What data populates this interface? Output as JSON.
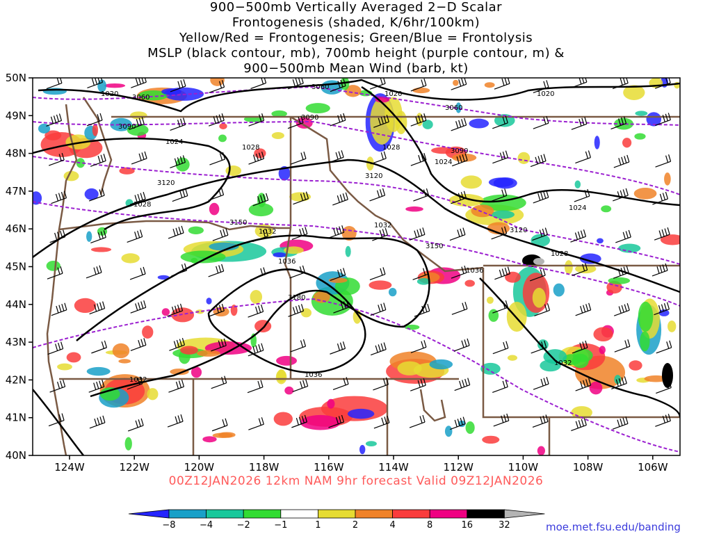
{
  "title_lines": [
    "900−500mb Vertically Averaged 2−D Scalar",
    "Frontogenesis (shaded, K/6hr/100km)",
    "Yellow/Red = Frontogenesis;  Green/Blue = Frontolysis",
    "MSLP (black contour, mb), 700mb height (purple contour, m) &",
    "900−500mb Mean Wind (barb, kt)"
  ],
  "subtitle": "00Z12JAN2026 12km NAM 9hr forecast Valid 09Z12JAN2026",
  "credit": "moe.met.fsu.edu/banding",
  "lat_labels": [
    "50N",
    "49N",
    "48N",
    "47N",
    "46N",
    "45N",
    "44N",
    "43N",
    "42N",
    "41N",
    "40N"
  ],
  "lon_labels": [
    "124W",
    "122W",
    "120W",
    "118W",
    "116W",
    "114W",
    "112W",
    "110W",
    "108W",
    "106W"
  ],
  "colorbar": {
    "labels": [
      "−8",
      "−4",
      "−2",
      "−1",
      "1",
      "2",
      "4",
      "8",
      "16",
      "32"
    ],
    "colors": [
      "#2424ff",
      "#19a0c8",
      "#19c89b",
      "#32dc32",
      "#ffffff",
      "#e6dc32",
      "#f08228",
      "#fa3c3c",
      "#f00082",
      "#000000",
      "#b4b4b4"
    ]
  },
  "mslp_labels": [
    "1020",
    "1020",
    "1020",
    "1024",
    "1024",
    "1024",
    "1028",
    "1028",
    "1028",
    "1028",
    "1032",
    "1032",
    "1032",
    "1032",
    "1036",
    "1036",
    "1036"
  ],
  "height_labels": [
    "3060",
    "3060",
    "3060",
    "3090",
    "3090",
    "3090",
    "3120",
    "3120",
    "3120",
    "3150",
    "3150",
    "3180"
  ],
  "colors": {
    "mslp": "#000000",
    "height": "#9b1fd0",
    "border": "#7a5a44"
  }
}
